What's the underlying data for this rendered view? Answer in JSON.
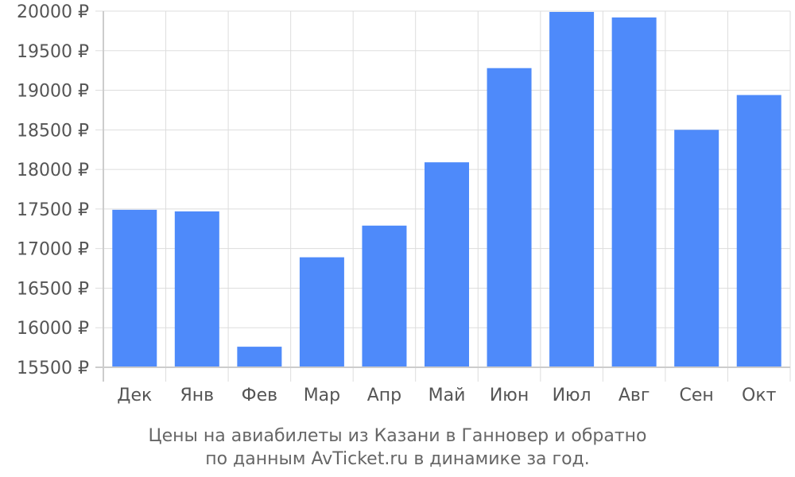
{
  "chart_data": {
    "type": "bar",
    "categories": [
      "Дек",
      "Янв",
      "Фев",
      "Мар",
      "Апр",
      "Май",
      "Июн",
      "Июл",
      "Авг",
      "Сен",
      "Окт"
    ],
    "values": [
      17490,
      17470,
      15760,
      16890,
      17290,
      18090,
      19280,
      19990,
      19920,
      18500,
      18940
    ],
    "ylim": [
      15500,
      20000
    ],
    "yticks": [
      15500,
      16000,
      16500,
      17000,
      17500,
      18000,
      18500,
      19000,
      19500,
      20000
    ],
    "y_unit": "₽",
    "grid": true,
    "bar_color": "#4e8afa",
    "caption_lines": [
      "Цены на авиабилеты из Казани в Ганновер и обратно",
      "по данным AvTicket.ru в динамике за год."
    ]
  }
}
